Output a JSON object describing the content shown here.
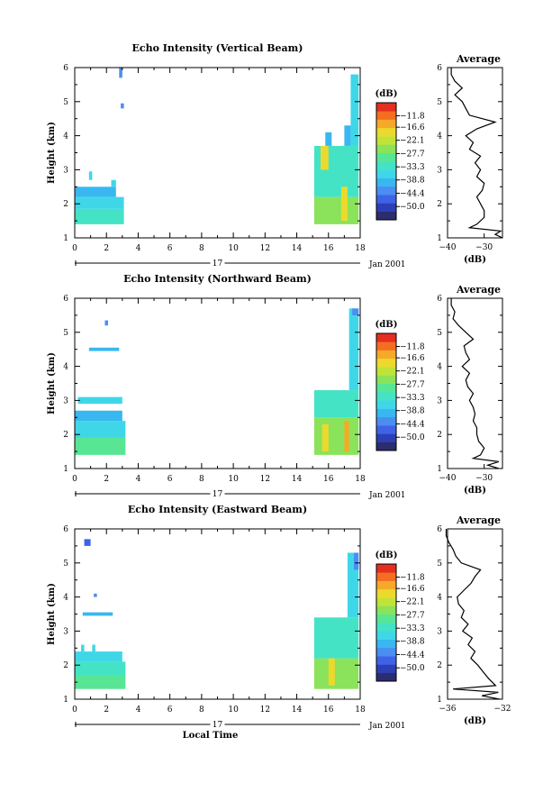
{
  "chart_data": [
    {
      "type": "heatmap",
      "title": "Echo Intensity (Vertical Beam)",
      "ylabel": "Height (km)",
      "xlim": [
        0,
        18
      ],
      "ylim": [
        1,
        6
      ],
      "x_ticks": [
        0,
        2,
        4,
        6,
        8,
        10,
        12,
        14,
        16,
        18
      ],
      "y_ticks": [
        1,
        2,
        3,
        4,
        5,
        6
      ],
      "date_marker": "17",
      "date_label": "Jan 2001",
      "colorbar": {
        "unit": "(dB)",
        "labels": [
          "-11.8",
          "-16.6",
          "-22.1",
          "-27.7",
          "-33.3",
          "-38.8",
          "-44.4",
          "-50.0"
        ],
        "range": [
          -55.6,
          -6.3
        ]
      },
      "cells": [
        {
          "x": [
            0,
            3.1
          ],
          "y": [
            1.4,
            1.85
          ],
          "db": -33
        },
        {
          "x": [
            0,
            3.1
          ],
          "y": [
            1.85,
            2.2
          ],
          "db": -36
        },
        {
          "x": [
            0,
            2.6
          ],
          "y": [
            2.2,
            2.5
          ],
          "db": -40
        },
        {
          "x": [
            2.3,
            2.6
          ],
          "y": [
            2.5,
            2.7
          ],
          "db": -36
        },
        {
          "x": [
            0.9,
            1.1
          ],
          "y": [
            2.7,
            2.95
          ],
          "db": -36
        },
        {
          "x": [
            2.8,
            3.0
          ],
          "y": [
            5.7,
            6.0
          ],
          "db": -44
        },
        {
          "x": [
            2.9,
            3.1
          ],
          "y": [
            4.8,
            4.95
          ],
          "db": -44
        },
        {
          "x": [
            15.1,
            17.9
          ],
          "y": [
            1.4,
            2.2
          ],
          "db": -25
        },
        {
          "x": [
            15.1,
            17.9
          ],
          "y": [
            2.2,
            3.7
          ],
          "db": -33
        },
        {
          "x": [
            15.5,
            16.0
          ],
          "y": [
            3.0,
            3.7
          ],
          "db": -19
        },
        {
          "x": [
            16.8,
            17.2
          ],
          "y": [
            1.5,
            2.5
          ],
          "db": -17
        },
        {
          "x": [
            17.4,
            17.9
          ],
          "y": [
            3.7,
            5.8
          ],
          "db": -36
        },
        {
          "x": [
            15.8,
            16.2
          ],
          "y": [
            3.7,
            4.1
          ],
          "db": -38
        },
        {
          "x": [
            17.0,
            17.4
          ],
          "y": [
            3.7,
            4.3
          ],
          "db": -40
        }
      ],
      "average": {
        "xlim": [
          -40,
          -25
        ],
        "x_ticks": [
          -40,
          -30
        ],
        "xlabel": "(dB)",
        "title": "Average",
        "profile": [
          {
            "h": 1.0,
            "db": -25
          },
          {
            "h": 1.1,
            "db": -27
          },
          {
            "h": 1.2,
            "db": -25.5
          },
          {
            "h": 1.3,
            "db": -34
          },
          {
            "h": 1.4,
            "db": -32
          },
          {
            "h": 1.6,
            "db": -30
          },
          {
            "h": 1.8,
            "db": -30
          },
          {
            "h": 2.0,
            "db": -31
          },
          {
            "h": 2.2,
            "db": -32
          },
          {
            "h": 2.4,
            "db": -30.5
          },
          {
            "h": 2.6,
            "db": -30
          },
          {
            "h": 2.8,
            "db": -32
          },
          {
            "h": 3.0,
            "db": -31
          },
          {
            "h": 3.2,
            "db": -32.5
          },
          {
            "h": 3.4,
            "db": -31
          },
          {
            "h": 3.6,
            "db": -34
          },
          {
            "h": 3.8,
            "db": -33
          },
          {
            "h": 4.0,
            "db": -35
          },
          {
            "h": 4.2,
            "db": -32
          },
          {
            "h": 4.4,
            "db": -27
          },
          {
            "h": 4.6,
            "db": -34
          },
          {
            "h": 4.8,
            "db": -35
          },
          {
            "h": 5.0,
            "db": -36
          },
          {
            "h": 5.2,
            "db": -38
          },
          {
            "h": 5.4,
            "db": -36
          },
          {
            "h": 5.6,
            "db": -38
          },
          {
            "h": 5.8,
            "db": -39
          },
          {
            "h": 6.0,
            "db": -39
          }
        ]
      }
    },
    {
      "type": "heatmap",
      "title": "Echo Intensity (Northward Beam)",
      "ylabel": "Height (km)",
      "xlim": [
        0,
        18
      ],
      "ylim": [
        1,
        6
      ],
      "x_ticks": [
        0,
        2,
        4,
        6,
        8,
        10,
        12,
        14,
        16,
        18
      ],
      "y_ticks": [
        1,
        2,
        3,
        4,
        5,
        6
      ],
      "date_marker": "17",
      "date_label": "Jan 2001",
      "colorbar": {
        "unit": "(dB)",
        "labels": [
          "-11.8",
          "-16.6",
          "-22.1",
          "-27.7",
          "-33.3",
          "-38.8",
          "-44.4",
          "-50.0"
        ],
        "range": [
          -55.6,
          -6.3
        ]
      },
      "cells": [
        {
          "x": [
            0,
            3.2
          ],
          "y": [
            1.4,
            1.9
          ],
          "db": -30
        },
        {
          "x": [
            0,
            3.2
          ],
          "y": [
            1.9,
            2.4
          ],
          "db": -35
        },
        {
          "x": [
            0,
            3.0
          ],
          "y": [
            2.4,
            2.7
          ],
          "db": -39
        },
        {
          "x": [
            0.2,
            3.0
          ],
          "y": [
            2.9,
            3.1
          ],
          "db": -36
        },
        {
          "x": [
            1.9,
            2.1
          ],
          "y": [
            5.2,
            5.35
          ],
          "db": -44
        },
        {
          "x": [
            0.9,
            2.8
          ],
          "y": [
            4.45,
            4.55
          ],
          "db": -40
        },
        {
          "x": [
            15.1,
            17.9
          ],
          "y": [
            1.4,
            2.5
          ],
          "db": -25
        },
        {
          "x": [
            15.1,
            17.9
          ],
          "y": [
            2.5,
            3.3
          ],
          "db": -33
        },
        {
          "x": [
            15.6,
            16.0
          ],
          "y": [
            1.5,
            2.3
          ],
          "db": -17
        },
        {
          "x": [
            17.0,
            17.3
          ],
          "y": [
            1.5,
            2.4
          ],
          "db": -15
        },
        {
          "x": [
            17.3,
            17.9
          ],
          "y": [
            3.3,
            5.7
          ],
          "db": -36
        },
        {
          "x": [
            17.5,
            17.9
          ],
          "y": [
            5.5,
            5.7
          ],
          "db": -44
        }
      ],
      "average": {
        "xlim": [
          -40,
          -25
        ],
        "x_ticks": [
          -40,
          -30
        ],
        "xlabel": "(dB)",
        "title": "Average",
        "profile": [
          {
            "h": 1.0,
            "db": -26
          },
          {
            "h": 1.1,
            "db": -29
          },
          {
            "h": 1.2,
            "db": -26
          },
          {
            "h": 1.3,
            "db": -33
          },
          {
            "h": 1.4,
            "db": -31
          },
          {
            "h": 1.6,
            "db": -30
          },
          {
            "h": 1.8,
            "db": -31.5
          },
          {
            "h": 2.0,
            "db": -32
          },
          {
            "h": 2.2,
            "db": -32
          },
          {
            "h": 2.4,
            "db": -33
          },
          {
            "h": 2.6,
            "db": -32.5
          },
          {
            "h": 2.8,
            "db": -33
          },
          {
            "h": 3.0,
            "db": -34
          },
          {
            "h": 3.2,
            "db": -33
          },
          {
            "h": 3.4,
            "db": -34.5
          },
          {
            "h": 3.6,
            "db": -35
          },
          {
            "h": 3.8,
            "db": -34
          },
          {
            "h": 4.0,
            "db": -36
          },
          {
            "h": 4.2,
            "db": -34
          },
          {
            "h": 4.4,
            "db": -35
          },
          {
            "h": 4.6,
            "db": -35.5
          },
          {
            "h": 4.8,
            "db": -33
          },
          {
            "h": 5.0,
            "db": -35
          },
          {
            "h": 5.2,
            "db": -37
          },
          {
            "h": 5.4,
            "db": -38.5
          },
          {
            "h": 5.6,
            "db": -38
          },
          {
            "h": 5.8,
            "db": -39
          },
          {
            "h": 6.0,
            "db": -39
          }
        ]
      }
    },
    {
      "type": "heatmap",
      "title": "Echo Intensity (Eastward Beam)",
      "xlabel": "Local Time",
      "ylabel": "Height (km)",
      "xlim": [
        0,
        18
      ],
      "ylim": [
        1,
        6
      ],
      "x_ticks": [
        0,
        2,
        4,
        6,
        8,
        10,
        12,
        14,
        16,
        18
      ],
      "y_ticks": [
        1,
        2,
        3,
        4,
        5,
        6
      ],
      "date_marker": "17",
      "date_label": "Jan 2001",
      "colorbar": {
        "unit": "(dB)",
        "labels": [
          "-11.8",
          "-16.6",
          "-22.1",
          "-27.7",
          "-33.3",
          "-38.8",
          "-44.4",
          "-50.0"
        ],
        "range": [
          -55.6,
          -6.3
        ]
      },
      "cells": [
        {
          "x": [
            0,
            3.2
          ],
          "y": [
            1.3,
            1.7
          ],
          "db": -29
        },
        {
          "x": [
            0,
            3.2
          ],
          "y": [
            1.7,
            2.1
          ],
          "db": -33
        },
        {
          "x": [
            0,
            3.0
          ],
          "y": [
            2.1,
            2.4
          ],
          "db": -37
        },
        {
          "x": [
            0.4,
            0.6
          ],
          "y": [
            2.4,
            2.6
          ],
          "db": -36
        },
        {
          "x": [
            1.1,
            1.3
          ],
          "y": [
            2.4,
            2.6
          ],
          "db": -36
        },
        {
          "x": [
            0.6,
            1.0
          ],
          "y": [
            5.5,
            5.7
          ],
          "db": -46
        },
        {
          "x": [
            1.2,
            1.4
          ],
          "y": [
            4.0,
            4.1
          ],
          "db": -44
        },
        {
          "x": [
            0.5,
            2.4
          ],
          "y": [
            3.45,
            3.55
          ],
          "db": -40
        },
        {
          "x": [
            15.1,
            17.9
          ],
          "y": [
            1.3,
            2.2
          ],
          "db": -25
        },
        {
          "x": [
            15.1,
            17.9
          ],
          "y": [
            2.2,
            3.4
          ],
          "db": -33
        },
        {
          "x": [
            16.0,
            16.4
          ],
          "y": [
            1.4,
            2.2
          ],
          "db": -17
        },
        {
          "x": [
            17.2,
            17.9
          ],
          "y": [
            3.4,
            5.3
          ],
          "db": -36
        },
        {
          "x": [
            17.6,
            17.9
          ],
          "y": [
            4.8,
            5.3
          ],
          "db": -44
        }
      ],
      "average": {
        "xlim": [
          -36,
          -32
        ],
        "x_ticks": [
          -36,
          -32
        ],
        "xlabel": "(dB)",
        "title": "Average",
        "profile": [
          {
            "h": 1.0,
            "db": -32.2
          },
          {
            "h": 1.1,
            "db": -33.5
          },
          {
            "h": 1.2,
            "db": -32.3
          },
          {
            "h": 1.3,
            "db": -35.6
          },
          {
            "h": 1.4,
            "db": -32.5
          },
          {
            "h": 1.6,
            "db": -33.0
          },
          {
            "h": 1.8,
            "db": -33.4
          },
          {
            "h": 2.0,
            "db": -33.8
          },
          {
            "h": 2.2,
            "db": -34.3
          },
          {
            "h": 2.4,
            "db": -34.0
          },
          {
            "h": 2.6,
            "db": -34.5
          },
          {
            "h": 2.8,
            "db": -34.2
          },
          {
            "h": 3.0,
            "db": -34.9
          },
          {
            "h": 3.2,
            "db": -34.5
          },
          {
            "h": 3.4,
            "db": -35.0
          },
          {
            "h": 3.6,
            "db": -34.8
          },
          {
            "h": 3.8,
            "db": -35.2
          },
          {
            "h": 4.0,
            "db": -35.3
          },
          {
            "h": 4.2,
            "db": -34.8
          },
          {
            "h": 4.4,
            "db": -34.3
          },
          {
            "h": 4.6,
            "db": -34.0
          },
          {
            "h": 4.8,
            "db": -33.6
          },
          {
            "h": 5.0,
            "db": -35.0
          },
          {
            "h": 5.2,
            "db": -35.4
          },
          {
            "h": 5.4,
            "db": -35.6
          },
          {
            "h": 5.6,
            "db": -35.9
          },
          {
            "h": 5.8,
            "db": -36.1
          },
          {
            "h": 6.0,
            "db": -36.1
          }
        ]
      }
    }
  ]
}
